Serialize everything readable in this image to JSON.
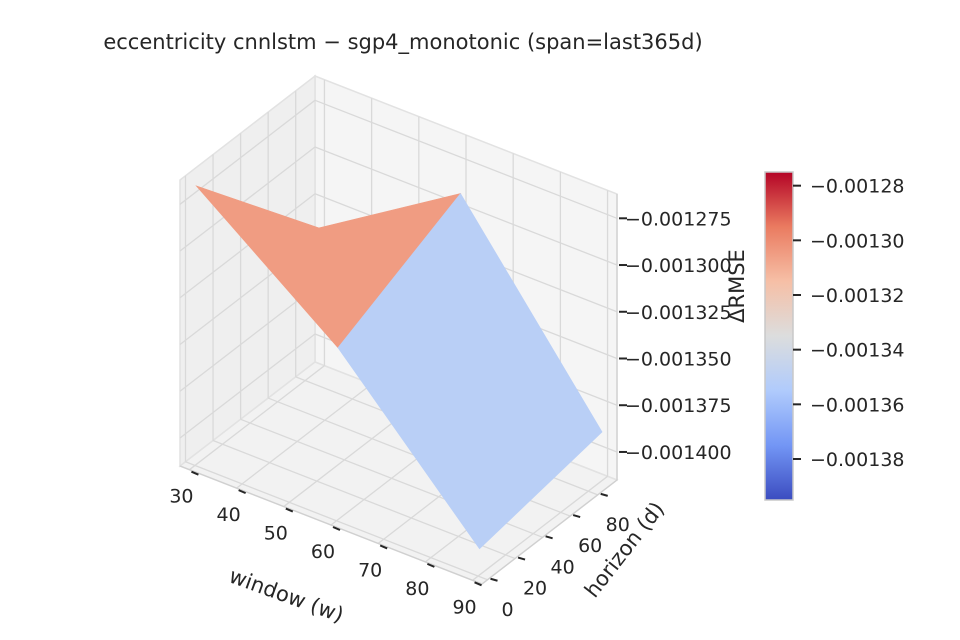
{
  "chart_data": {
    "type": "surface3d",
    "title": "eccentricity  cnnlstm − sgp4_monotonic  (span=last365d)",
    "xlabel": "window (w)",
    "ylabel": "horizon (d)",
    "zlabel": "ΔRMSE",
    "x_ticks": [
      "30",
      "40",
      "50",
      "60",
      "70",
      "80",
      "90"
    ],
    "y_ticks": [
      "0",
      "20",
      "40",
      "60",
      "80"
    ],
    "z_ticks": [
      "−0.001275",
      "−0.001300",
      "−0.001325",
      "−0.001350",
      "−0.001375",
      "−0.001400"
    ],
    "colorbar_ticks": [
      "−0.00128",
      "−0.00130",
      "−0.00132",
      "−0.00134",
      "−0.00136",
      "−0.00138"
    ],
    "colormap": "coolwarm",
    "colormap_stops": [
      "#3b4cc0",
      "#7396f5",
      "#b0cbfc",
      "#dcdddd",
      "#f6bfa6",
      "#ea7b60",
      "#b40426"
    ],
    "zlim": [
      -0.0014,
      -0.001275
    ],
    "clim": [
      -0.001395,
      -0.001275
    ],
    "windows": [
      30,
      60,
      90
    ],
    "horizons": [
      1,
      90
    ],
    "z": [
      [
        -0.001266,
        -0.001339
      ],
      [
        -0.001323,
        -0.001291
      ],
      [
        -0.001401,
        -0.001389
      ]
    ],
    "grid": true
  }
}
